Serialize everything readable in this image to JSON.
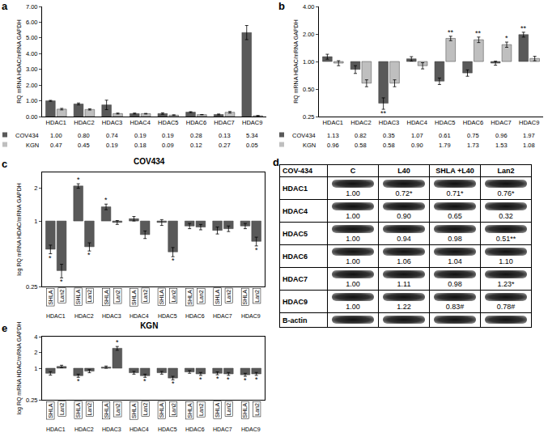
{
  "chart_data": [
    {
      "panel": "a",
      "type": "bar",
      "y_label": "RQ mRNA HDAC/mRNA GAPDH",
      "categories": [
        "HDAC1",
        "HDAC2",
        "HDAC3",
        "HDAC4",
        "HDAC5",
        "HDAC6",
        "HDAC7",
        "HDAC9"
      ],
      "series": [
        {
          "name": "COV434",
          "color": "#595959",
          "values": [
            1.0,
            0.8,
            0.74,
            0.19,
            0.19,
            0.28,
            0.13,
            5.34
          ],
          "value_labels": [
            "1.00",
            "0.80",
            "0.74",
            "0.19",
            "0.19",
            "0.28",
            "0.13",
            "5.34"
          ],
          "error": [
            0.03,
            0.06,
            0.3,
            0.03,
            0.05,
            0.03,
            0.03,
            0.45
          ]
        },
        {
          "name": "KGN",
          "color": "#bfbfbf",
          "values": [
            0.47,
            0.45,
            0.19,
            0.18,
            0.09,
            0.12,
            0.27,
            0.05
          ],
          "value_labels": [
            "0.47",
            "0.45",
            "0.19",
            "0.18",
            "0.09",
            "0.12",
            "0.27",
            "0.05"
          ],
          "error": [
            0.05,
            0.04,
            0.03,
            0.02,
            0.02,
            0.01,
            0.05,
            0.01
          ]
        }
      ],
      "ylim": [
        0,
        7
      ],
      "yticks": [
        {
          "value": 0,
          "label": "0.00"
        },
        {
          "value": 1,
          "label": "1.00"
        },
        {
          "value": 2,
          "label": "2.00"
        },
        {
          "value": 3,
          "label": "3.00"
        },
        {
          "value": 4,
          "label": "4.00"
        },
        {
          "value": 5,
          "label": "5.00"
        },
        {
          "value": 6,
          "label": "6.00"
        },
        {
          "value": 7,
          "label": "7.00"
        }
      ],
      "grid": false
    },
    {
      "panel": "b",
      "type": "bar",
      "y_label": "RQ mRNA HDAC/mRNA GAPDH",
      "log": "y",
      "base": 1,
      "categories": [
        "HDAC1",
        "HDAC2",
        "HDAC3",
        "HDAC4",
        "HDAC5",
        "HDAC6",
        "HDAC7",
        "HDAC9"
      ],
      "series": [
        {
          "name": "COV434",
          "color": "#595959",
          "values": [
            1.13,
            0.82,
            0.35,
            1.07,
            0.61,
            0.75,
            0.96,
            1.97
          ],
          "value_labels": [
            "1.13",
            "0.82",
            "0.35",
            "1.07",
            "0.61",
            "0.75",
            "0.96",
            "1.97"
          ],
          "error": [
            0.07,
            0.08,
            0.05,
            0.06,
            0.05,
            0.06,
            0.05,
            0.12
          ],
          "significance": [
            null,
            null,
            "**",
            null,
            null,
            null,
            null,
            "**"
          ]
        },
        {
          "name": "KGN",
          "color": "#bfbfbf",
          "values": [
            0.96,
            0.58,
            0.58,
            0.9,
            1.79,
            1.73,
            1.53,
            1.08
          ],
          "value_labels": [
            "0.96",
            "0.58",
            "0.58",
            "0.90",
            "1.79",
            "1.73",
            "1.53",
            "1.08"
          ],
          "error": [
            0.06,
            0.05,
            0.05,
            0.07,
            0.1,
            0.12,
            0.1,
            0.06
          ],
          "significance": [
            null,
            null,
            null,
            null,
            "**",
            "**",
            "*",
            null
          ]
        }
      ],
      "ylim": [
        0.25,
        4
      ],
      "yticks": [
        0.25,
        {
          "value": 0.5,
          "label": "0.50"
        },
        {
          "value": 1,
          "label": "1.00"
        },
        {
          "value": 2,
          "label": "2.00"
        },
        {
          "value": 4,
          "label": "4.00"
        }
      ],
      "grid": false
    },
    {
      "panel": "c",
      "type": "bar",
      "title": "COV434",
      "y_label": "log RQ mRNA HDAC/mRNA GAPDH",
      "log": "y",
      "base": 1,
      "categories": [
        "HDAC1",
        "HDAC2",
        "HDAC3",
        "HDAC4",
        "HDAC5",
        "HDAC6",
        "HDAC7",
        "HDAC9"
      ],
      "series": [
        {
          "name": "SHLA",
          "color": "#595959",
          "values": [
            0.55,
            2.1,
            1.35,
            1.05,
            0.97,
            0.9,
            0.82,
            0.9
          ],
          "error": [
            0.05,
            0.1,
            0.08,
            0.05,
            0.06,
            0.05,
            0.06,
            0.05
          ],
          "significance": [
            "*",
            "*",
            "*",
            null,
            null,
            null,
            null,
            null
          ]
        },
        {
          "name": "Lan2",
          "color": "#595959",
          "values": [
            0.35,
            0.58,
            0.97,
            0.75,
            0.52,
            0.88,
            0.85,
            0.65
          ],
          "error": [
            0.05,
            0.05,
            0.04,
            0.06,
            0.05,
            0.05,
            0.05,
            0.06
          ],
          "significance": [
            "*",
            "*",
            null,
            null,
            "*",
            null,
            null,
            "*"
          ]
        }
      ],
      "ylim": [
        0.25,
        2.8
      ],
      "yticks": [
        0.25,
        1,
        2
      ],
      "grid": false
    },
    {
      "panel": "e",
      "type": "bar",
      "title": "KGN",
      "y_label": "log RQ mRNA HDAC/mRNA GAPDH",
      "log": "y",
      "base": 1,
      "categories": [
        "HDAC1",
        "HDAC2",
        "HDAC3",
        "HDAC4",
        "HDAC5",
        "HDAC6",
        "HDAC7",
        "HDAC9"
      ],
      "series": [
        {
          "name": "SHLA",
          "color": "#595959",
          "values": [
            0.8,
            0.72,
            1.05,
            0.82,
            0.82,
            0.85,
            0.8,
            0.75
          ],
          "error": [
            0.06,
            0.05,
            0.05,
            0.05,
            0.05,
            0.05,
            0.05,
            0.05
          ],
          "significance": [
            null,
            "*",
            null,
            null,
            null,
            null,
            "*",
            "*"
          ]
        },
        {
          "name": "Lan2",
          "color": "#595959",
          "values": [
            1.08,
            0.88,
            2.4,
            0.72,
            0.65,
            0.78,
            0.78,
            0.78
          ],
          "error": [
            0.06,
            0.06,
            0.2,
            0.05,
            0.05,
            0.05,
            0.05,
            0.05
          ],
          "significance": [
            null,
            null,
            "*",
            "*",
            "*",
            "*",
            "*",
            "*"
          ]
        }
      ],
      "ylim": [
        0.25,
        4
      ],
      "yticks": [
        0.25,
        1,
        2,
        4
      ],
      "grid": false
    }
  ],
  "blot": {
    "panel": "d",
    "columns": [
      "COV-434",
      "C",
      "L40",
      "SHLA +L40",
      "Lan2"
    ],
    "rows": [
      {
        "label": "HDAC1",
        "values": [
          "1.00",
          "0.72*",
          "0.71*",
          "0.76*"
        ]
      },
      {
        "label": "HDAC4",
        "values": [
          "1.00",
          "0.90",
          "0.65",
          "0.32"
        ]
      },
      {
        "label": "HDAC5",
        "values": [
          "1.00",
          "0.94",
          "0.98",
          "0.51**"
        ]
      },
      {
        "label": "HDAC6",
        "values": [
          "1.00",
          "1.06",
          "1.04",
          "1.10"
        ]
      },
      {
        "label": "HDAC7",
        "values": [
          "1.00",
          "1.11",
          "0.98",
          "1.23*"
        ]
      },
      {
        "label": "HDAC9",
        "values": [
          "1.00",
          "1.22",
          "0.83#",
          "0.78#"
        ]
      },
      {
        "label": "B-actin",
        "values": []
      }
    ]
  }
}
